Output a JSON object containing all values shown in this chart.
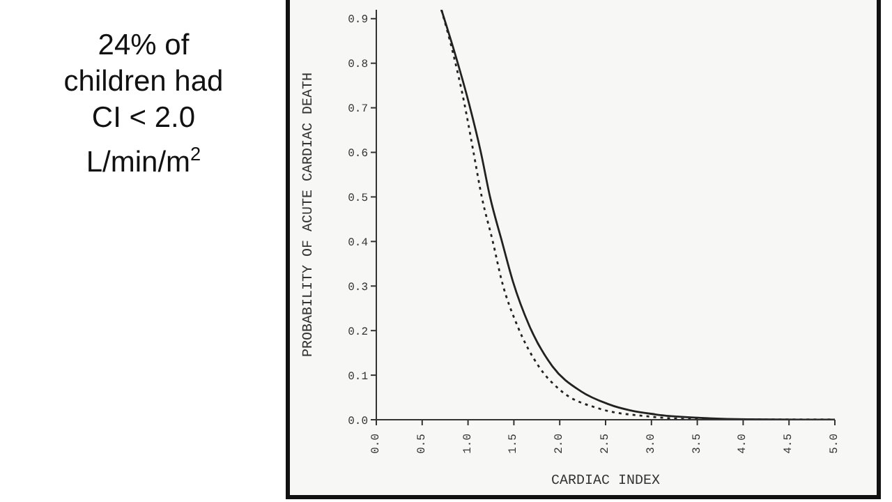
{
  "chart_data": {
    "type": "line",
    "xlabel": "CARDIAC INDEX",
    "ylabel": "PROBABILITY OF ACUTE CARDIAC DEATH",
    "annotations": [
      "24% of children had CI < 2.0 L/min/m$^{2}$"
    ],
    "xlim": [
      0,
      5
    ],
    "ylim": [
      0,
      0.92
    ],
    "xticks": [
      {
        "value": 0,
        "label": "0.0"
      },
      0.5,
      {
        "value": 1,
        "label": "1.0"
      },
      1.5,
      {
        "value": 2,
        "label": "2.0"
      },
      2.5,
      {
        "value": 3,
        "label": "3.0"
      },
      3.5,
      {
        "value": 4,
        "label": "4.0"
      },
      4.5,
      {
        "value": 5,
        "label": "5.0"
      }
    ],
    "yticks": [
      {
        "value": 0,
        "label": "0.0"
      },
      0.1,
      0.2,
      0.3,
      0.4,
      0.5,
      0.6,
      0.7,
      0.8,
      0.9
    ],
    "marker": "none",
    "series": [
      {
        "color": "#222222",
        "line_style": "solid",
        "x": [
          0.71,
          0.86,
          1.01,
          1.14,
          1.24,
          1.37,
          1.49,
          1.67,
          1.92,
          2.23,
          2.53,
          3.04,
          3.54,
          4.05,
          5.0
        ],
        "values": [
          0.92,
          0.82,
          0.71,
          0.6,
          0.5,
          0.4,
          0.31,
          0.21,
          0.12,
          0.064,
          0.035,
          0.012,
          0.004,
          0.001,
          0
        ]
      },
      {
        "color": "#222222",
        "line_style": "dotted",
        "x": [
          0.71,
          0.84,
          0.96,
          1.06,
          1.15,
          1.27,
          1.37,
          1.54,
          1.77,
          2.02,
          2.43,
          2.94,
          3.54,
          5.0
        ],
        "values": [
          0.92,
          0.82,
          0.71,
          0.6,
          0.5,
          0.4,
          0.31,
          0.21,
          0.12,
          0.064,
          0.025,
          0.008,
          0.001,
          0
        ]
      }
    ]
  }
}
